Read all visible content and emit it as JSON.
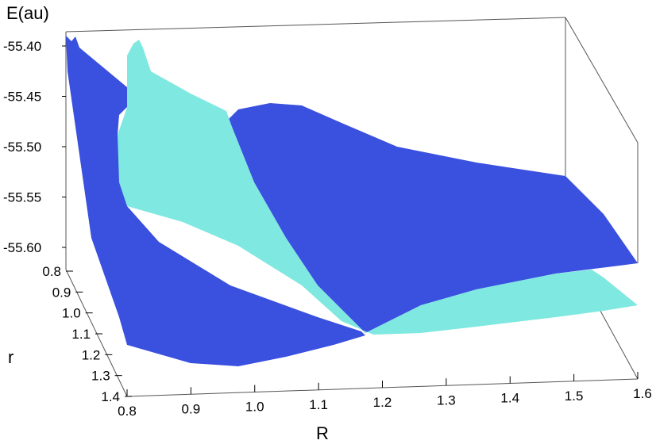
{
  "chart_data": {
    "type": "surface3d",
    "title": "",
    "zlabel": "E(au)",
    "xlabel": "R",
    "ylabel": "r",
    "x_ticks": [
      0.8,
      0.9,
      1.0,
      1.1,
      1.2,
      1.3,
      1.4,
      1.5,
      1.6
    ],
    "x_tick_labels": [
      "0.8",
      "0.9",
      "1.0",
      "1.1",
      "1.2",
      "1.3",
      "1.4",
      "1.5",
      "1.6"
    ],
    "y_ticks": [
      0.8,
      0.9,
      1.0,
      1.1,
      1.2,
      1.3,
      1.4
    ],
    "y_tick_labels": [
      "0.8",
      "0.9",
      "1.0",
      "1.1",
      "1.2",
      "1.3",
      "1.4"
    ],
    "z_ticks": [
      -55.4,
      -55.45,
      -55.5,
      -55.55,
      -55.6
    ],
    "z_tick_labels": [
      "-55.40",
      "-55.45",
      "-55.50",
      "-55.55",
      "-55.60"
    ],
    "xlim": [
      0.8,
      1.6
    ],
    "ylim": [
      0.8,
      1.4
    ],
    "zlim": [
      -55.62,
      -55.4
    ],
    "series": [
      {
        "color": "#3a50df",
        "description_points": [
          {
            "R": 0.8,
            "r": 0.8,
            "E": -55.41
          },
          {
            "R": 0.8,
            "r": 1.4,
            "E": -55.68
          },
          {
            "R": 1.15,
            "r": 1.25,
            "E": -55.66
          },
          {
            "R": 1.6,
            "r": 0.8,
            "E": -55.55
          },
          {
            "R": 1.6,
            "r": 1.4,
            "E": -55.62
          }
        ]
      },
      {
        "color": "#7fe8e0",
        "description_points": [
          {
            "R": 0.85,
            "r": 0.8,
            "E": -55.41
          },
          {
            "R": 0.85,
            "r": 1.0,
            "E": -55.52
          },
          {
            "R": 1.15,
            "r": 1.25,
            "E": -55.66
          },
          {
            "R": 1.6,
            "r": 1.1,
            "E": -55.63
          },
          {
            "R": 1.6,
            "r": 1.4,
            "E": -55.66
          }
        ]
      }
    ],
    "grid": false,
    "legend": "none"
  }
}
